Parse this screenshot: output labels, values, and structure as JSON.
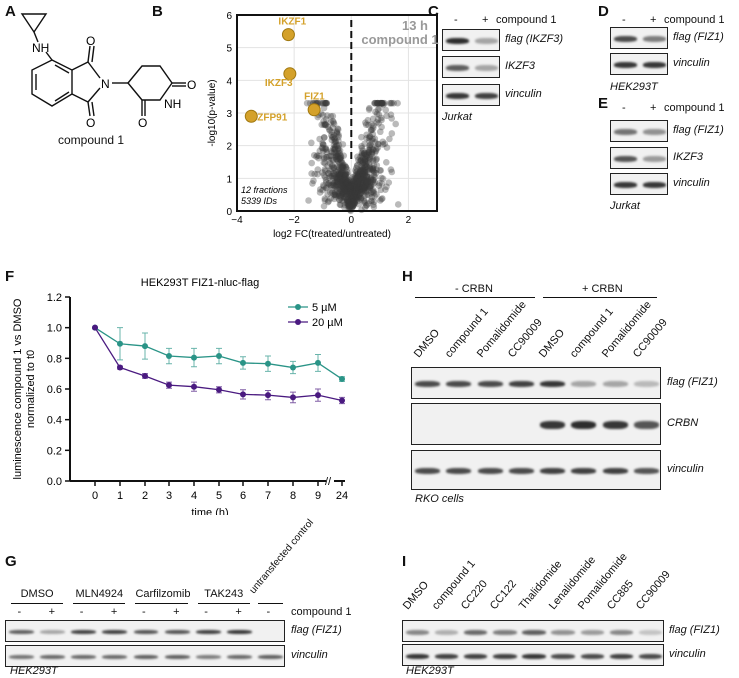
{
  "panels": {
    "A": {
      "label": "A",
      "compound": "compound 1",
      "atoms": {
        "nh1": "NH",
        "n": "N",
        "o1": "O",
        "o2": "O",
        "o3": "O",
        "o4": "O",
        "nh2": "NH"
      }
    },
    "B": {
      "label": "B"
    },
    "C": {
      "label": "C",
      "minus": "-",
      "plus": "+",
      "treatment": "compound 1",
      "rows": [
        {
          "label": "flag (IKZF3)",
          "bands": [
            0.95,
            0.35
          ]
        },
        {
          "label": "IKZF3",
          "bands": [
            0.7,
            0.35
          ]
        },
        {
          "label": "vinculin",
          "bands": [
            0.9,
            0.85
          ]
        }
      ],
      "cell_line": "Jurkat"
    },
    "D": {
      "label": "D",
      "minus": "-",
      "plus": "+",
      "treatment": "compound 1",
      "rows": [
        {
          "label": "flag (FIZ1)",
          "bands": [
            0.8,
            0.55
          ]
        },
        {
          "label": "vinculin",
          "bands": [
            0.9,
            0.9
          ]
        }
      ],
      "cell_line": "HEK293T"
    },
    "E": {
      "label": "E",
      "minus": "-",
      "plus": "+",
      "treatment": "compound 1",
      "rows": [
        {
          "label": "flag (FIZ1)",
          "bands": [
            0.6,
            0.45
          ]
        },
        {
          "label": "IKZF3",
          "bands": [
            0.75,
            0.4
          ]
        },
        {
          "label": "vinculin",
          "bands": [
            0.9,
            0.9
          ]
        }
      ],
      "cell_line": "Jurkat"
    },
    "F": {
      "label": "F"
    },
    "G": {
      "label": "G",
      "groups": [
        "DMSO",
        "MLN4924",
        "Carfilzomib",
        "TAK243"
      ],
      "control": "untransfected control",
      "signs": [
        "-",
        "+",
        "-",
        "+",
        "-",
        "+",
        "-",
        "+",
        "-"
      ],
      "treatment": "compound 1",
      "rows": [
        {
          "label": "flag (FIZ1)",
          "bands": [
            0.7,
            0.35,
            0.85,
            0.85,
            0.75,
            0.75,
            0.85,
            0.9,
            0
          ]
        },
        {
          "label": "vinculin",
          "bands": [
            0.6,
            0.65,
            0.65,
            0.65,
            0.7,
            0.7,
            0.55,
            0.65,
            0.7
          ]
        }
      ],
      "cell_line": "HEK293T"
    },
    "H": {
      "label": "H",
      "groups": [
        "- CRBN",
        "+ CRBN"
      ],
      "lanes": [
        "DMSO",
        "compound 1",
        "Pomalidomide",
        "CC90009",
        "DMSO",
        "compound 1",
        "Pomalidomide",
        "CC90009"
      ],
      "rows": [
        {
          "label": "flag (FIZ1)",
          "bands": [
            0.8,
            0.8,
            0.8,
            0.85,
            0.9,
            0.35,
            0.35,
            0.25
          ]
        },
        {
          "label": "CRBN",
          "bands": [
            0,
            0,
            0,
            0,
            0.9,
            0.95,
            0.9,
            0.75
          ]
        },
        {
          "label": "vinculin",
          "bands": [
            0.8,
            0.8,
            0.8,
            0.8,
            0.85,
            0.85,
            0.85,
            0.75
          ]
        }
      ],
      "cell_line": "RKO cells"
    },
    "I": {
      "label": "I",
      "lanes": [
        "DMSO",
        "compound 1",
        "CC220",
        "CC122",
        "Thalidomide",
        "Lenalidomide",
        "Pomalidomide",
        "CC885",
        "CC90009"
      ],
      "rows": [
        {
          "label": "flag (FIZ1)",
          "bands": [
            0.5,
            0.3,
            0.65,
            0.55,
            0.7,
            0.45,
            0.4,
            0.5,
            0.2
          ]
        },
        {
          "label": "vinculin",
          "bands": [
            0.9,
            0.85,
            0.85,
            0.85,
            0.9,
            0.8,
            0.8,
            0.85,
            0.8
          ]
        }
      ],
      "cell_line": "HEK293T"
    }
  },
  "chart_data": [
    {
      "type": "scatter",
      "panel": "B",
      "title": "13 h compound 1",
      "xlabel": "log2 FC(treated/untreated)",
      "ylabel": "-log10(p-value)",
      "xlim": [
        -4,
        3
      ],
      "ylim": [
        0,
        6
      ],
      "xticks": [
        -4,
        -2,
        0,
        2
      ],
      "yticks": [
        0,
        1,
        2,
        3,
        4,
        5,
        6
      ],
      "grid": true,
      "threshold_x": 0,
      "annotation": [
        "12 fractions",
        "5339 IDs"
      ],
      "highlight_color": "#d4a12a",
      "background_color": "#3a3a3a",
      "highlighted": [
        {
          "name": "IKZF1",
          "x": -2.2,
          "y": 5.4
        },
        {
          "name": "IKZF3",
          "x": -2.15,
          "y": 4.2
        },
        {
          "name": "FIZ1",
          "x": -1.3,
          "y": 3.1
        },
        {
          "name": "ZFP91",
          "x": -3.5,
          "y": 2.9
        }
      ]
    },
    {
      "type": "line",
      "panel": "F",
      "title": "HEK293T  FIZ1-nluc-flag",
      "xlabel": "time (h)",
      "ylabel": [
        "luminescence compound 1 vs DMSO",
        "normalized to t0"
      ],
      "x": [
        "0",
        "1",
        "2",
        "3",
        "4",
        "5",
        "6",
        "7",
        "8",
        "9",
        "24"
      ],
      "ylim": [
        0,
        1.2
      ],
      "yticks": [
        "0.0",
        "0.2",
        "0.4",
        "0.6",
        "0.8",
        "1.0",
        "1.2"
      ],
      "axis_break": "//",
      "legend": "top-right",
      "series": [
        {
          "name": "5 µM",
          "color": "#2a9487",
          "values": [
            1.0,
            0.895,
            0.88,
            0.815,
            0.805,
            0.815,
            0.77,
            0.765,
            0.74,
            0.77,
            0.665
          ],
          "errors": [
            0,
            0.105,
            0.085,
            0.05,
            0.06,
            0.05,
            0.04,
            0.05,
            0.04,
            0.055,
            0.015
          ]
        },
        {
          "name": "20 µM",
          "color": "#4a1a80",
          "values": [
            1.0,
            0.74,
            0.685,
            0.625,
            0.615,
            0.595,
            0.565,
            0.56,
            0.545,
            0.56,
            0.525
          ],
          "errors": [
            0,
            0.01,
            0.015,
            0.02,
            0.03,
            0.02,
            0.03,
            0.03,
            0.035,
            0.04,
            0.02
          ]
        }
      ]
    }
  ]
}
